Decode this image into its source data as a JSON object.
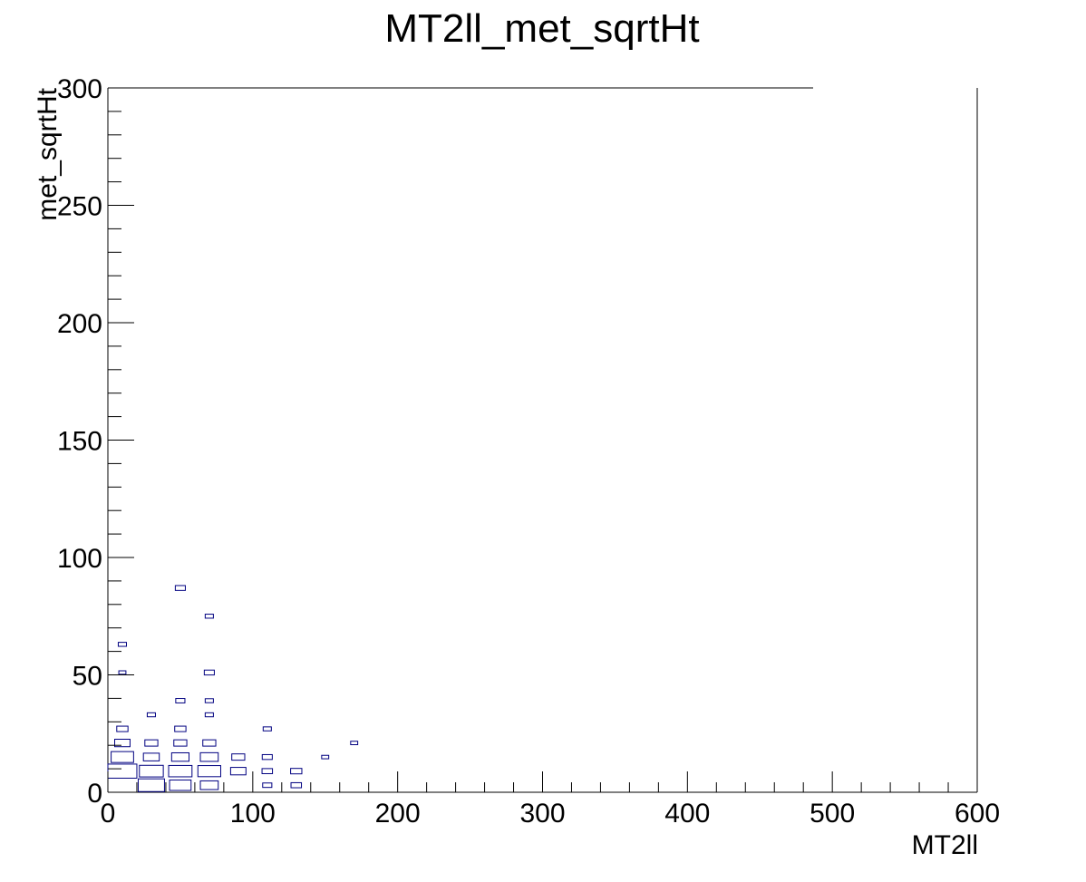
{
  "chart_data": {
    "type": "heatmap",
    "style": "box",
    "title": "MT2ll_met_sqrtHt",
    "xlabel": "MT2ll",
    "ylabel": "met_sqrtHt",
    "xlim": [
      0,
      600
    ],
    "ylim": [
      0,
      300
    ],
    "x_ticks": [
      "0",
      "100",
      "200",
      "300",
      "400",
      "500",
      "600"
    ],
    "y_ticks": [
      "0",
      "50",
      "100",
      "150",
      "200",
      "250",
      "300"
    ],
    "bin_width": {
      "x": 20,
      "y": 6
    },
    "box_color": "#000080",
    "cells": [
      {
        "x": 10,
        "y": 9,
        "rel": 1.0
      },
      {
        "x": 10,
        "y": 15,
        "rel": 0.6
      },
      {
        "x": 10,
        "y": 21,
        "rel": 0.28
      },
      {
        "x": 10,
        "y": 27,
        "rel": 0.15
      },
      {
        "x": 10,
        "y": 51,
        "rel": 0.06
      },
      {
        "x": 10,
        "y": 63,
        "rel": 0.08
      },
      {
        "x": 30,
        "y": 3,
        "rel": 0.82
      },
      {
        "x": 30,
        "y": 9,
        "rel": 0.68
      },
      {
        "x": 30,
        "y": 15,
        "rel": 0.3
      },
      {
        "x": 30,
        "y": 21,
        "rel": 0.2
      },
      {
        "x": 30,
        "y": 33,
        "rel": 0.08
      },
      {
        "x": 50,
        "y": 3,
        "rel": 0.55
      },
      {
        "x": 50,
        "y": 9,
        "rel": 0.65
      },
      {
        "x": 50,
        "y": 15,
        "rel": 0.36
      },
      {
        "x": 50,
        "y": 21,
        "rel": 0.2
      },
      {
        "x": 50,
        "y": 27,
        "rel": 0.15
      },
      {
        "x": 50,
        "y": 39,
        "rel": 0.1
      },
      {
        "x": 50,
        "y": 87,
        "rel": 0.12
      },
      {
        "x": 70,
        "y": 3,
        "rel": 0.38
      },
      {
        "x": 70,
        "y": 9,
        "rel": 0.62
      },
      {
        "x": 70,
        "y": 15,
        "rel": 0.38
      },
      {
        "x": 70,
        "y": 21,
        "rel": 0.2
      },
      {
        "x": 70,
        "y": 33,
        "rel": 0.08
      },
      {
        "x": 70,
        "y": 39,
        "rel": 0.08
      },
      {
        "x": 70,
        "y": 51,
        "rel": 0.12
      },
      {
        "x": 70,
        "y": 75,
        "rel": 0.08
      },
      {
        "x": 90,
        "y": 9,
        "rel": 0.28
      },
      {
        "x": 90,
        "y": 15,
        "rel": 0.2
      },
      {
        "x": 110,
        "y": 3,
        "rel": 0.1
      },
      {
        "x": 110,
        "y": 9,
        "rel": 0.13
      },
      {
        "x": 110,
        "y": 15,
        "rel": 0.12
      },
      {
        "x": 110,
        "y": 27,
        "rel": 0.08
      },
      {
        "x": 130,
        "y": 3,
        "rel": 0.13
      },
      {
        "x": 130,
        "y": 9,
        "rel": 0.15
      },
      {
        "x": 150,
        "y": 15,
        "rel": 0.06
      },
      {
        "x": 170,
        "y": 21,
        "rel": 0.06
      }
    ]
  }
}
